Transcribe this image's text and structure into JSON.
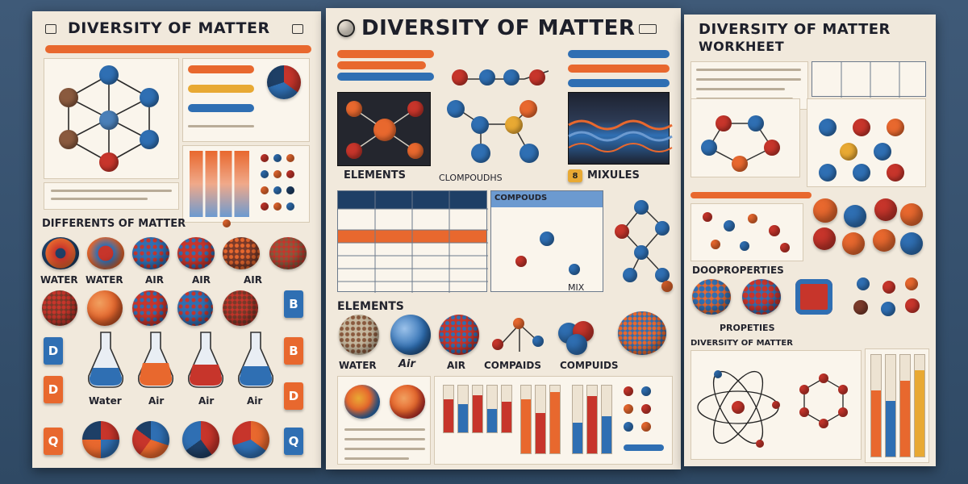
{
  "poster_left": {
    "title": "DIVERSITY OF MATTER",
    "section_title": "DIFFERENTS OF MATTER",
    "row1_labels": [
      "WATER",
      "WATER",
      "AIR",
      "AIR",
      "AIR"
    ],
    "row2_labels": [
      "Water",
      "Air",
      "Air",
      "Air"
    ],
    "badges": [
      "B",
      "D",
      "B",
      "D",
      "D",
      "Q",
      "Q"
    ]
  },
  "poster_center": {
    "title": "DIVERSITY OF MATTER",
    "labels_top": [
      "ELEMENTS",
      "CLOMPOUDHS",
      "MIXULES"
    ],
    "compounds_header": "COMPOUDS",
    "mix_label": "MIX",
    "elements_label": "ELEMENTS",
    "bottom_labels": [
      "WATER",
      "Air",
      "AIR",
      "COMPAIDS",
      "COMPUIDS"
    ]
  },
  "poster_right": {
    "title": "DIVERSITY OF MATTER",
    "subtitle": "WORKHEET",
    "properties_label": "DOOPROPERTIES",
    "properties_label2": "PROPETIES",
    "diversity_label": "DIVERSITY OF MATTER"
  },
  "colors": {
    "paper": "#f1e9dc",
    "orange": "#e8682e",
    "blue": "#2f6fb3",
    "red": "#c7352b",
    "navy": "#1e3f66",
    "yellow": "#e8a933"
  }
}
